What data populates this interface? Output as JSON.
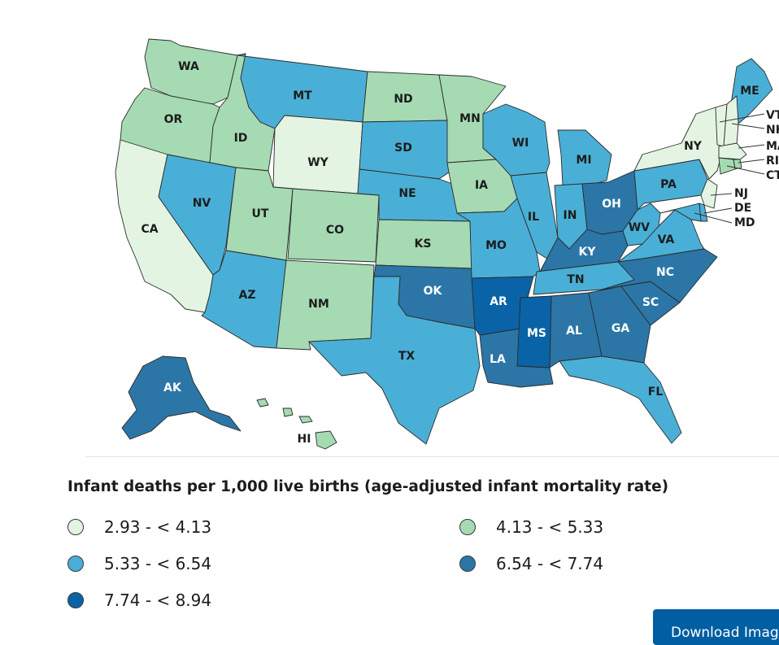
{
  "legend": {
    "title": "Infant deaths per 1,000 live births (age-adjusted infant mortality rate)",
    "items": [
      {
        "label": "2.93 - < 4.13",
        "color": "#e3f5e2"
      },
      {
        "label": "4.13 - < 5.33",
        "color": "#a5dab3"
      },
      {
        "label": "5.33 - < 6.54",
        "color": "#4aafd6"
      },
      {
        "label": "6.54 - < 7.74",
        "color": "#2b76a6"
      },
      {
        "label": "7.74 - < 8.94",
        "color": "#0a63a6"
      }
    ]
  },
  "states": [
    {
      "abbr": "WA",
      "bin": 1
    },
    {
      "abbr": "OR",
      "bin": 1
    },
    {
      "abbr": "CA",
      "bin": 0
    },
    {
      "abbr": "ID",
      "bin": 1
    },
    {
      "abbr": "NV",
      "bin": 2
    },
    {
      "abbr": "MT",
      "bin": 2
    },
    {
      "abbr": "WY",
      "bin": 0
    },
    {
      "abbr": "UT",
      "bin": 1
    },
    {
      "abbr": "CO",
      "bin": 1
    },
    {
      "abbr": "AZ",
      "bin": 2
    },
    {
      "abbr": "NM",
      "bin": 1
    },
    {
      "abbr": "ND",
      "bin": 1
    },
    {
      "abbr": "SD",
      "bin": 2
    },
    {
      "abbr": "NE",
      "bin": 2
    },
    {
      "abbr": "KS",
      "bin": 1
    },
    {
      "abbr": "OK",
      "bin": 3
    },
    {
      "abbr": "TX",
      "bin": 2
    },
    {
      "abbr": "MN",
      "bin": 1
    },
    {
      "abbr": "IA",
      "bin": 1
    },
    {
      "abbr": "MO",
      "bin": 2
    },
    {
      "abbr": "AR",
      "bin": 4
    },
    {
      "abbr": "LA",
      "bin": 3
    },
    {
      "abbr": "WI",
      "bin": 2
    },
    {
      "abbr": "IL",
      "bin": 2
    },
    {
      "abbr": "MI",
      "bin": 2
    },
    {
      "abbr": "IN",
      "bin": 2
    },
    {
      "abbr": "OH",
      "bin": 3
    },
    {
      "abbr": "KY",
      "bin": 3
    },
    {
      "abbr": "TN",
      "bin": 2
    },
    {
      "abbr": "MS",
      "bin": 4
    },
    {
      "abbr": "AL",
      "bin": 3
    },
    {
      "abbr": "GA",
      "bin": 3
    },
    {
      "abbr": "FL",
      "bin": 2
    },
    {
      "abbr": "SC",
      "bin": 3
    },
    {
      "abbr": "NC",
      "bin": 3
    },
    {
      "abbr": "VA",
      "bin": 2
    },
    {
      "abbr": "WV",
      "bin": 2
    },
    {
      "abbr": "PA",
      "bin": 2
    },
    {
      "abbr": "NY",
      "bin": 0
    },
    {
      "abbr": "ME",
      "bin": 2
    },
    {
      "abbr": "VT",
      "bin": 0
    },
    {
      "abbr": "NH",
      "bin": 0
    },
    {
      "abbr": "MA",
      "bin": 0
    },
    {
      "abbr": "RI",
      "bin": 1
    },
    {
      "abbr": "CT",
      "bin": 1
    },
    {
      "abbr": "NJ",
      "bin": 0
    },
    {
      "abbr": "DE",
      "bin": 2
    },
    {
      "abbr": "MD",
      "bin": 2
    },
    {
      "abbr": "AK",
      "bin": 3
    },
    {
      "abbr": "HI",
      "bin": 1
    }
  ],
  "callout_labels": {
    "VT": "VT",
    "NH": "NH",
    "MA": "MA",
    "RI": "RI",
    "CT": "CT",
    "NJ": "NJ",
    "DE": "DE",
    "MD": "MD"
  },
  "download": {
    "label": "Download Image"
  }
}
